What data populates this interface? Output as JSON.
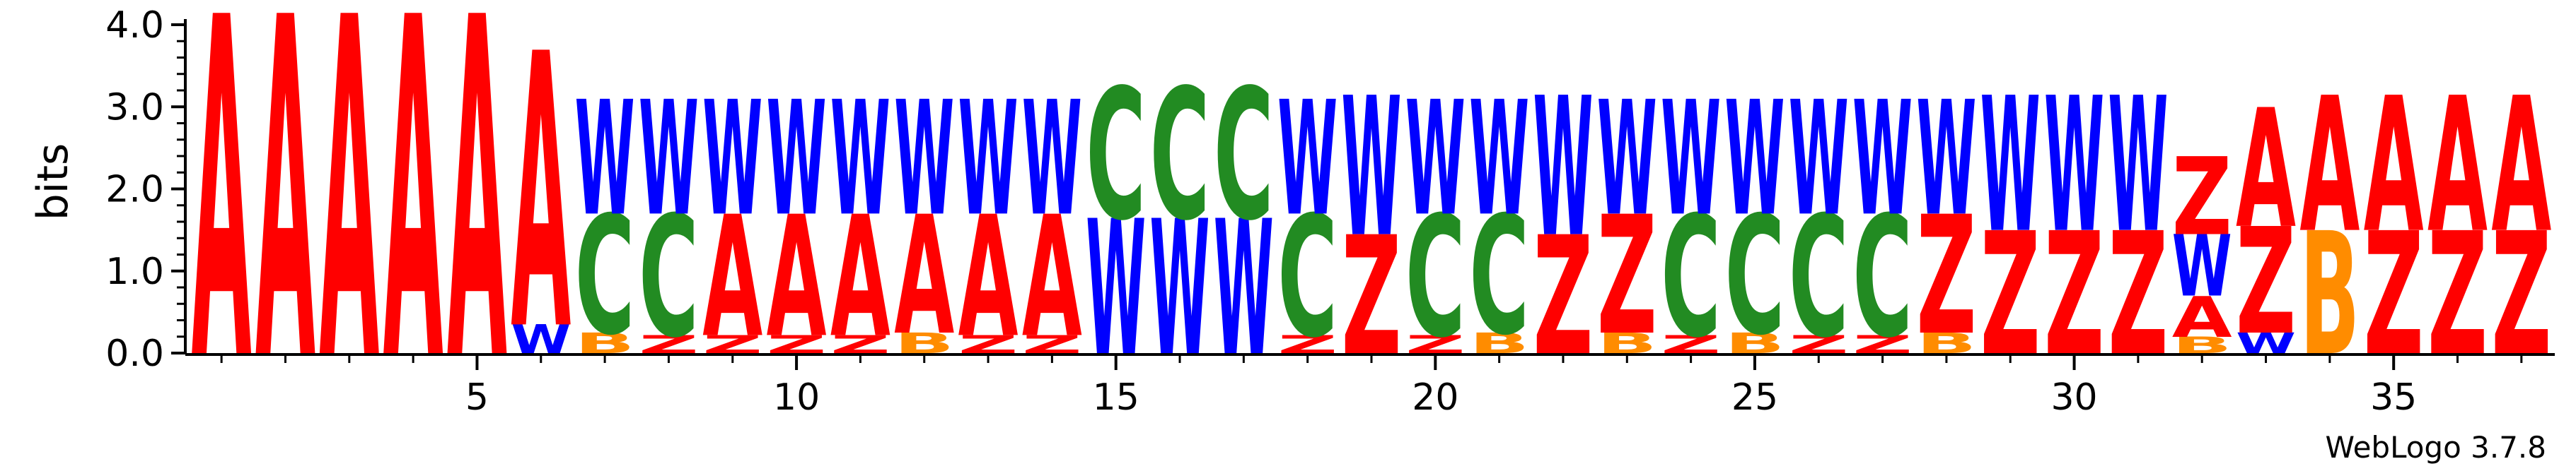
{
  "chart_data": {
    "type": "sequence-logo",
    "ylabel": "bits",
    "ylim": [
      0,
      4.0
    ],
    "yticks": [
      "0.0",
      "1.0",
      "2.0",
      "3.0",
      "4.0"
    ],
    "xlim": [
      0.5,
      37.5
    ],
    "xticks": [
      "5",
      "10",
      "15",
      "20",
      "25",
      "30",
      "35"
    ],
    "footer": "WebLogo 3.7.8",
    "colors": {
      "A": "#ff0000",
      "Z": "#ff0000",
      "W": "#0000ff",
      "C": "#228b22",
      "B": "#ff8c00"
    },
    "positions": [
      {
        "pos": 1,
        "stack": [
          [
            "A",
            4.15
          ]
        ]
      },
      {
        "pos": 2,
        "stack": [
          [
            "A",
            4.15
          ]
        ]
      },
      {
        "pos": 3,
        "stack": [
          [
            "A",
            4.15
          ]
        ]
      },
      {
        "pos": 4,
        "stack": [
          [
            "A",
            4.15
          ]
        ]
      },
      {
        "pos": 5,
        "stack": [
          [
            "A",
            4.15
          ]
        ]
      },
      {
        "pos": 6,
        "stack": [
          [
            "W",
            0.35
          ],
          [
            "A",
            3.35
          ]
        ]
      },
      {
        "pos": 7,
        "stack": [
          [
            "B",
            0.25
          ],
          [
            "C",
            1.45
          ],
          [
            "W",
            1.4
          ]
        ]
      },
      {
        "pos": 8,
        "stack": [
          [
            "Z",
            0.22
          ],
          [
            "C",
            1.48
          ],
          [
            "W",
            1.4
          ]
        ]
      },
      {
        "pos": 9,
        "stack": [
          [
            "Z",
            0.22
          ],
          [
            "A",
            1.48
          ],
          [
            "W",
            1.4
          ]
        ]
      },
      {
        "pos": 10,
        "stack": [
          [
            "Z",
            0.22
          ],
          [
            "A",
            1.48
          ],
          [
            "W",
            1.4
          ]
        ]
      },
      {
        "pos": 11,
        "stack": [
          [
            "Z",
            0.22
          ],
          [
            "A",
            1.48
          ],
          [
            "W",
            1.4
          ]
        ]
      },
      {
        "pos": 12,
        "stack": [
          [
            "B",
            0.25
          ],
          [
            "A",
            1.45
          ],
          [
            "W",
            1.4
          ]
        ]
      },
      {
        "pos": 13,
        "stack": [
          [
            "Z",
            0.22
          ],
          [
            "A",
            1.48
          ],
          [
            "W",
            1.4
          ]
        ]
      },
      {
        "pos": 14,
        "stack": [
          [
            "Z",
            0.22
          ],
          [
            "A",
            1.48
          ],
          [
            "W",
            1.4
          ]
        ]
      },
      {
        "pos": 15,
        "stack": [
          [
            "W",
            1.65
          ],
          [
            "C",
            1.6
          ]
        ]
      },
      {
        "pos": 16,
        "stack": [
          [
            "W",
            1.65
          ],
          [
            "C",
            1.6
          ]
        ]
      },
      {
        "pos": 17,
        "stack": [
          [
            "W",
            1.65
          ],
          [
            "C",
            1.6
          ]
        ]
      },
      {
        "pos": 18,
        "stack": [
          [
            "Z",
            0.22
          ],
          [
            "C",
            1.48
          ],
          [
            "W",
            1.4
          ]
        ]
      },
      {
        "pos": 19,
        "stack": [
          [
            "Z",
            1.45
          ],
          [
            "W",
            1.7
          ]
        ]
      },
      {
        "pos": 20,
        "stack": [
          [
            "Z",
            0.22
          ],
          [
            "C",
            1.48
          ],
          [
            "W",
            1.4
          ]
        ]
      },
      {
        "pos": 21,
        "stack": [
          [
            "B",
            0.25
          ],
          [
            "C",
            1.45
          ],
          [
            "W",
            1.4
          ]
        ]
      },
      {
        "pos": 22,
        "stack": [
          [
            "Z",
            1.45
          ],
          [
            "W",
            1.7
          ]
        ]
      },
      {
        "pos": 23,
        "stack": [
          [
            "B",
            0.25
          ],
          [
            "Z",
            1.45
          ],
          [
            "W",
            1.4
          ]
        ]
      },
      {
        "pos": 24,
        "stack": [
          [
            "Z",
            0.22
          ],
          [
            "C",
            1.48
          ],
          [
            "W",
            1.4
          ]
        ]
      },
      {
        "pos": 25,
        "stack": [
          [
            "B",
            0.25
          ],
          [
            "C",
            1.45
          ],
          [
            "W",
            1.4
          ]
        ]
      },
      {
        "pos": 26,
        "stack": [
          [
            "Z",
            0.22
          ],
          [
            "C",
            1.48
          ],
          [
            "W",
            1.4
          ]
        ]
      },
      {
        "pos": 27,
        "stack": [
          [
            "Z",
            0.22
          ],
          [
            "C",
            1.48
          ],
          [
            "W",
            1.4
          ]
        ]
      },
      {
        "pos": 28,
        "stack": [
          [
            "B",
            0.25
          ],
          [
            "Z",
            1.45
          ],
          [
            "W",
            1.4
          ]
        ]
      },
      {
        "pos": 29,
        "stack": [
          [
            "Z",
            1.5
          ],
          [
            "W",
            1.65
          ]
        ]
      },
      {
        "pos": 30,
        "stack": [
          [
            "Z",
            1.5
          ],
          [
            "W",
            1.65
          ]
        ]
      },
      {
        "pos": 31,
        "stack": [
          [
            "Z",
            1.5
          ],
          [
            "W",
            1.65
          ]
        ]
      },
      {
        "pos": 32,
        "stack": [
          [
            "B",
            0.2
          ],
          [
            "A",
            0.5
          ],
          [
            "W",
            0.75
          ],
          [
            "Z",
            0.95
          ]
        ]
      },
      {
        "pos": 33,
        "stack": [
          [
            "W",
            0.25
          ],
          [
            "Z",
            1.3
          ],
          [
            "A",
            1.45
          ]
        ]
      },
      {
        "pos": 34,
        "stack": [
          [
            "B",
            1.5
          ],
          [
            "A",
            1.65
          ]
        ]
      },
      {
        "pos": 35,
        "stack": [
          [
            "Z",
            1.5
          ],
          [
            "A",
            1.65
          ]
        ]
      },
      {
        "pos": 36,
        "stack": [
          [
            "Z",
            1.5
          ],
          [
            "A",
            1.65
          ]
        ]
      },
      {
        "pos": 37,
        "stack": [
          [
            "Z",
            1.5
          ],
          [
            "A",
            1.65
          ]
        ]
      }
    ]
  }
}
